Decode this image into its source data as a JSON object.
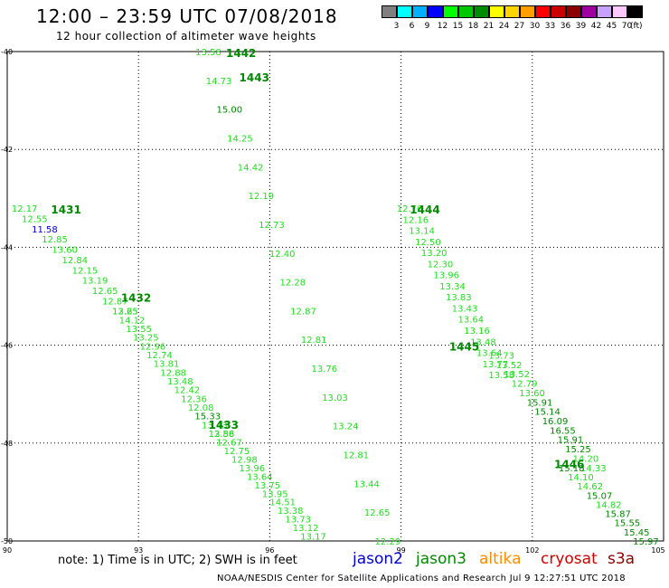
{
  "title": "12:00 – 23:59 UTC 07/08/2018",
  "subtitle": "12 hour collection of altimeter wave heights",
  "legend": {
    "unit": "(ft)",
    "bins": [
      {
        "label": "3",
        "color": "#7f7f7f"
      },
      {
        "label": "6",
        "color": "#00ffff"
      },
      {
        "label": "9",
        "color": "#00b0ff"
      },
      {
        "label": "12",
        "color": "#0000ff"
      },
      {
        "label": "15",
        "color": "#00ff00"
      },
      {
        "label": "18",
        "color": "#00c800"
      },
      {
        "label": "21",
        "color": "#008c00"
      },
      {
        "label": "24",
        "color": "#ffff00"
      },
      {
        "label": "27",
        "color": "#ffd400"
      },
      {
        "label": "30",
        "color": "#ffa000"
      },
      {
        "label": "33",
        "color": "#ff0000"
      },
      {
        "label": "36",
        "color": "#c80000"
      },
      {
        "label": "39",
        "color": "#8c0000"
      },
      {
        "label": "42",
        "color": "#9f00a0"
      },
      {
        "label": "45",
        "color": "#c8a0ff"
      },
      {
        "label": "70",
        "color": "#ffc8ff"
      },
      {
        "label": "",
        "color": "#000000"
      }
    ]
  },
  "note": "note: 1) Time is in UTC; 2) SWH is in feet",
  "satellites": [
    {
      "name": "jason2",
      "color": "#0000cc"
    },
    {
      "name": "jason3",
      "color": "#008800"
    },
    {
      "name": "altika",
      "color": "#ff8c00"
    },
    {
      "name": "cryosat",
      "color": "#cc0000"
    },
    {
      "name": "s3a",
      "color": "#8b0000"
    }
  ],
  "footer": "NOAA/NESDIS Center for Satellite Applications and Research   Jul  9 12:27:51 UTC 2018",
  "chart_data": {
    "type": "scatter",
    "x_ticks": [
      "90",
      "93",
      "96",
      "99",
      "102",
      "105"
    ],
    "y_ticks": [
      "-40",
      "-42",
      "-44",
      "-46",
      "-48",
      "-50"
    ],
    "xlim": [
      90,
      105
    ],
    "ylim": [
      -50,
      -40
    ],
    "grid": true,
    "colors": {
      "light": "#22dd22",
      "dark": "#008800",
      "low": "#0000cc"
    },
    "passes": [
      {
        "label": "1442",
        "label_at": [
          95.0,
          -40.0
        ],
        "start": [
          94.3,
          -40.0
        ],
        "end": [
          98.4,
          -50.0
        ],
        "values": [
          "13.58",
          "14.73",
          "15.00",
          "14.25",
          "14.42",
          "12.19",
          "12.73",
          "12.40",
          "12.28",
          "12.87",
          "12.81",
          "13.76",
          "13.03",
          "13.24",
          "12.81",
          "13.44",
          "12.65",
          "12.29"
        ]
      },
      {
        "label": "1443",
        "label_at": [
          95.3,
          -40.5
        ],
        "start": [
          95.3,
          -40.5
        ],
        "end": [
          99.4,
          -50.0
        ],
        "values": []
      },
      {
        "label": "1444",
        "label_at": [
          99.2,
          -43.2
        ],
        "start": [
          98.9,
          -43.2
        ],
        "end": [
          101.0,
          -46.6
        ],
        "values": [
          "12.76",
          "12.16",
          "13.14",
          "12.50",
          "13.20",
          "12.30",
          "13.96",
          "13.34",
          "13.83",
          "13.43",
          "13.64",
          "13.16",
          "13.48",
          "13.64",
          "13.77",
          "13.58"
        ]
      },
      {
        "label": "1445",
        "label_at": [
          100.1,
          -46.0
        ],
        "start": [
          101.0,
          -46.2
        ],
        "end": [
          103.1,
          -48.5
        ],
        "values": [
          "13.73",
          "13.52",
          "13.52",
          "12.79",
          "13.60",
          "15.91",
          "15.14",
          "16.09",
          "16.55",
          "15.91",
          "15.25",
          "14.20",
          "14.33"
        ]
      },
      {
        "label": "1446",
        "label_at": [
          102.5,
          -48.4
        ],
        "start": [
          102.6,
          -48.5
        ],
        "end": [
          104.3,
          -50.0
        ],
        "values": [
          "15.18",
          "14.10",
          "14.62",
          "15.07",
          "14.82",
          "15.87",
          "15.55",
          "15.45",
          "15.97"
        ]
      },
      {
        "label": "1431",
        "label_at": [
          91.0,
          -43.2
        ],
        "start": [
          90.1,
          -43.2
        ],
        "end": [
          92.4,
          -45.3
        ],
        "values": [
          "12.17",
          "12.55",
          "11.58",
          "12.85",
          "13.60",
          "12.84",
          "12.15",
          "13.19",
          "12.65",
          "12.87",
          "12.65"
        ]
      },
      {
        "label": "1432",
        "label_at": [
          92.6,
          -45.0
        ],
        "start": [
          92.4,
          -45.3
        ],
        "end": [
          94.6,
          -47.8
        ],
        "values": [
          "13.25",
          "14.12",
          "13.55",
          "13.25",
          "12.96",
          "12.74",
          "13.81",
          "12.88",
          "13.48",
          "12.42",
          "12.36",
          "12.08",
          "15.33",
          "13.43",
          "13.88"
        ]
      },
      {
        "label": "1433",
        "label_at": [
          94.6,
          -47.6
        ],
        "start": [
          94.6,
          -47.8
        ],
        "end": [
          96.7,
          -49.9
        ],
        "values": [
          "12.56",
          "12.67",
          "12.75",
          "12.98",
          "13.96",
          "13.64",
          "13.75",
          "13.95",
          "14.51",
          "13.38",
          "13.73",
          "13.12",
          "13.17"
        ]
      }
    ]
  }
}
